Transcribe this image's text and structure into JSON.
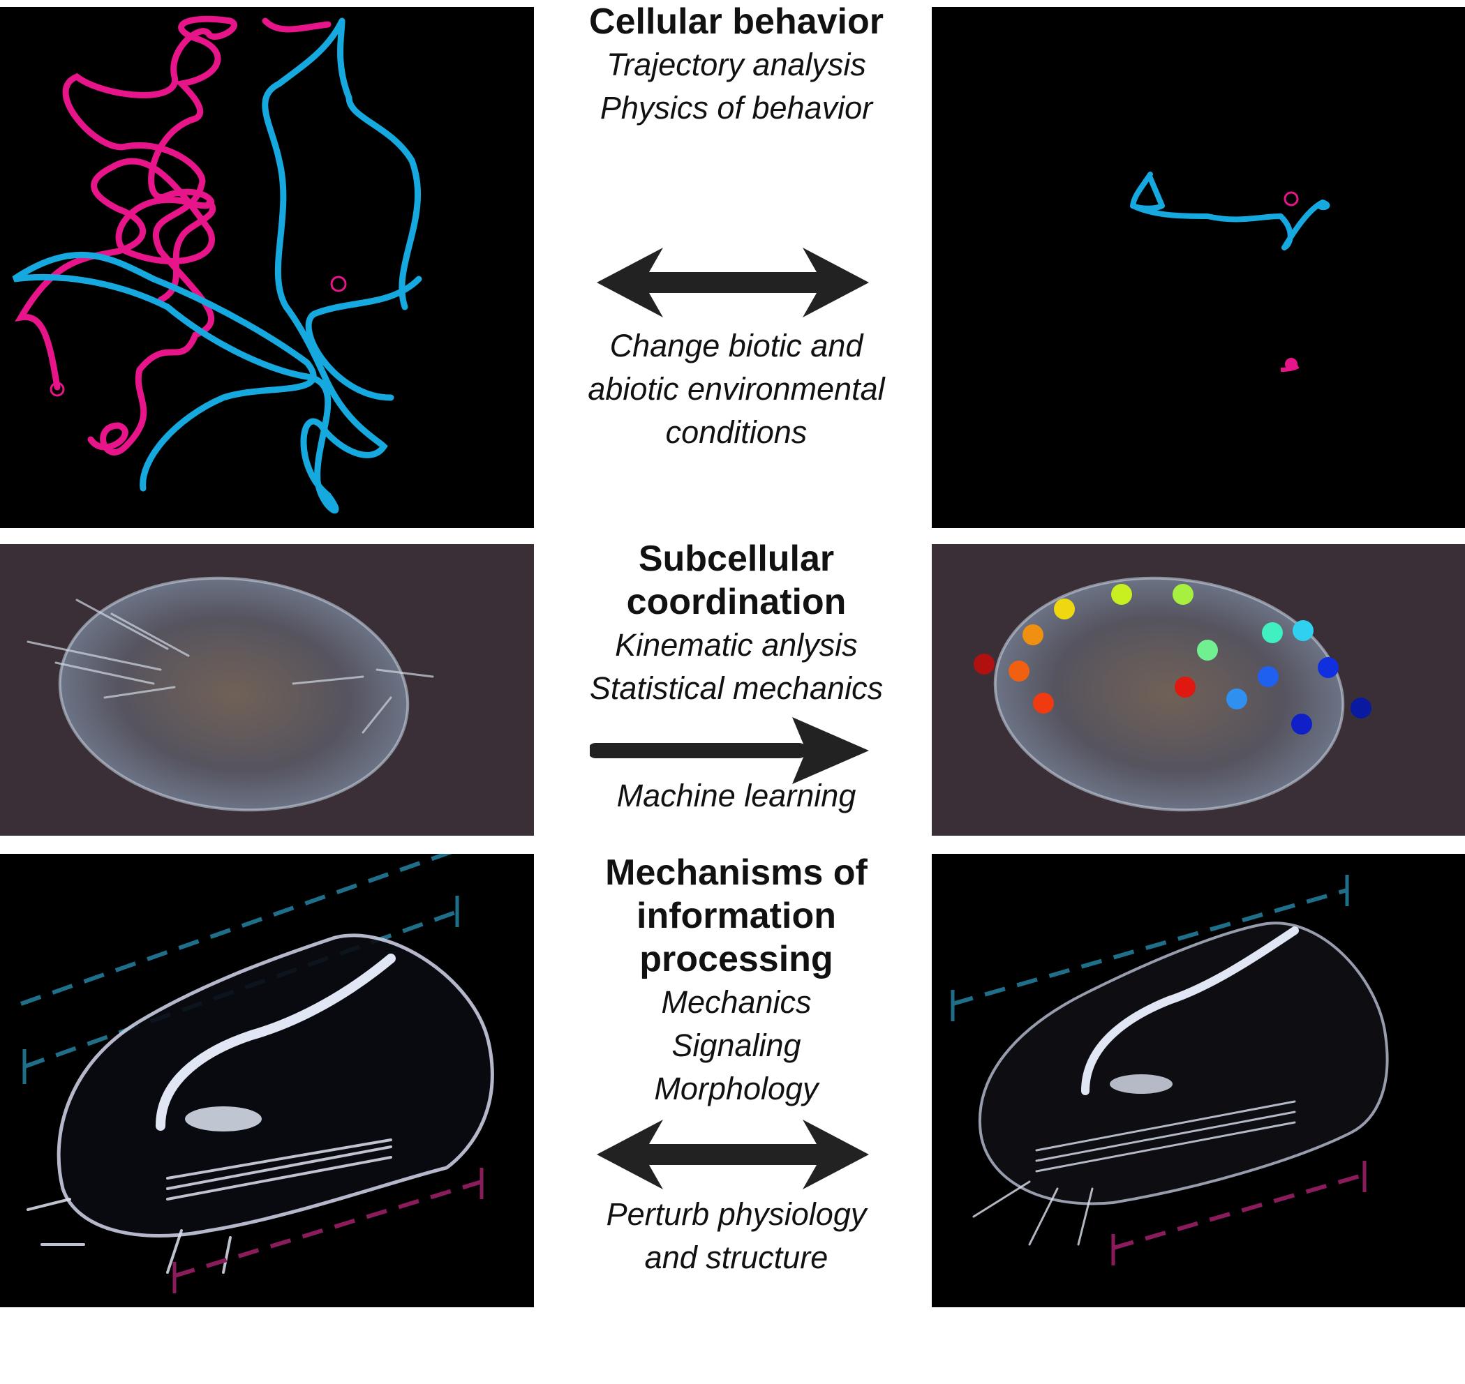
{
  "sections": [
    {
      "heading": "Cellular behavior",
      "methods": [
        "Trajectory analysis",
        "Physics of behavior"
      ],
      "arrow": "double",
      "caption": [
        "Change biotic and",
        "abiotic environmental",
        "conditions"
      ]
    },
    {
      "heading": [
        "Subcellular",
        "coordination"
      ],
      "methods": [
        "Kinematic anlysis",
        "Statistical mechanics"
      ],
      "arrow": "right",
      "caption": [
        "Machine learning"
      ]
    },
    {
      "heading": [
        "Mechanisms of",
        "information",
        "processing"
      ],
      "methods": [
        "Mechanics",
        "Signaling",
        "Morphology"
      ],
      "arrow": "double",
      "caption": [
        "Perturb physiology",
        "and structure"
      ]
    }
  ],
  "colors": {
    "trajectory_a": "#e8158a",
    "trajectory_b": "#16a9e0",
    "dashed_top": "#1f6f8b",
    "dashed_bottom": "#8a1c5c",
    "arrow": "#222222"
  }
}
